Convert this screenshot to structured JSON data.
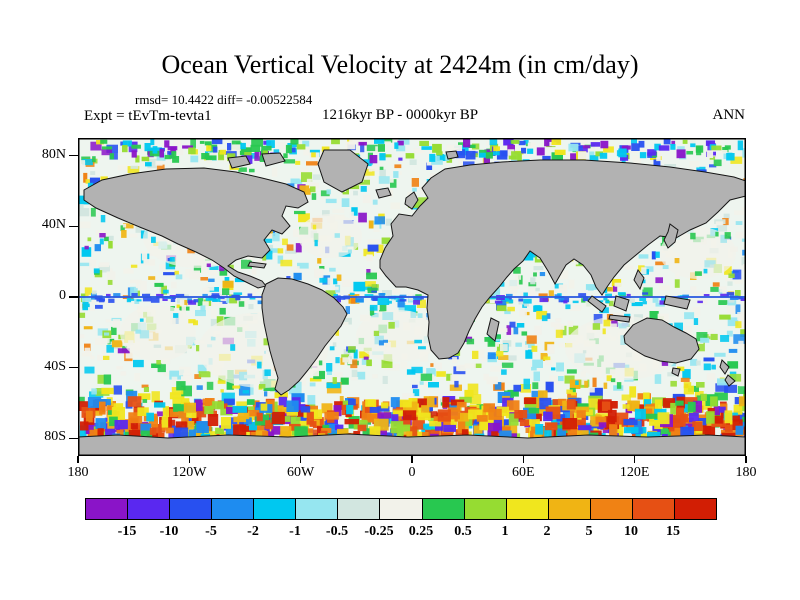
{
  "figure": {
    "title": "Ocean Vertical Velocity at 2424m (in cm/day)",
    "stats_line": "rmsd= 10.4422 diff= -0.00522584",
    "experiment_label": "Expt = tEvTm-tevta1",
    "period_label": "1216kyr BP - 0000kyr BP",
    "season_label": "ANN"
  },
  "chart_data": {
    "type": "heatmap",
    "title": "Ocean Vertical Velocity at 2424m (in cm/day)",
    "variable": "Ocean Vertical Velocity",
    "depth": "2424m",
    "units": "cm/day",
    "experiment": "tEvTm-tevta1",
    "rmsd": 10.4422,
    "diff": -0.00522584,
    "time_period": "1216kyr BP - 0000kyr BP",
    "season": "ANN",
    "map": {
      "projection": "equirectangular",
      "lon_range": [
        -180,
        180
      ],
      "lat_range": [
        -90,
        90
      ],
      "land_color": "#b2b2b2",
      "coast_color": "#151515",
      "ocean_base_color": "#eef5ef",
      "equator_line_color": "#2d5be0",
      "frame_color": "#000000"
    },
    "axes": {
      "lat_tick_labels": [
        "80N",
        "40N",
        "0",
        "40S",
        "80S"
      ],
      "lat_tick_values": [
        80,
        40,
        0,
        -40,
        -80
      ],
      "lon_tick_labels": [
        "180",
        "120W",
        "60W",
        "0",
        "60E",
        "120E",
        "180"
      ],
      "lon_tick_values": [
        -180,
        -120,
        -60,
        0,
        60,
        120,
        180
      ]
    },
    "colorbar": {
      "levels": [
        -15,
        -10,
        -5,
        -2,
        -1,
        -0.5,
        -0.25,
        0.25,
        0.5,
        1,
        2,
        5,
        10,
        15
      ],
      "tick_labels": [
        "-15",
        "-10",
        "-5",
        "-2",
        "-1",
        "-0.5",
        "-0.25",
        "0.25",
        "0.5",
        "1",
        "2",
        "5",
        "10",
        "15"
      ],
      "colors": [
        "#8a14c8",
        "#5a28f0",
        "#2850f0",
        "#1e8cf0",
        "#00c8f0",
        "#96e6f0",
        "#d2e6e0",
        "#f2f2ea",
        "#28c850",
        "#96dc32",
        "#f0e61e",
        "#f0b414",
        "#f08214",
        "#e65014",
        "#d21e04"
      ]
    }
  }
}
